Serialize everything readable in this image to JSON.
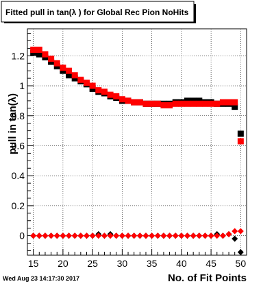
{
  "chart_data": {
    "type": "scatter",
    "title": "Fitted pull in tan(λ ) for Global Rec Pion NoHits",
    "xlabel": "No. of Fit Points",
    "ylabel": "pull in tan(λ)",
    "timestamp": "Wed Aug 23 14:17:30 2017",
    "xlim": [
      14,
      51
    ],
    "ylim": [
      -0.13,
      1.38
    ],
    "xticks": [
      15,
      20,
      25,
      30,
      35,
      40,
      45,
      50
    ],
    "yticks": [
      0,
      0.2,
      0.4,
      0.6,
      0.8,
      1,
      1.2
    ],
    "ytick_labels": [
      "0",
      "0.2",
      "0.4",
      "0.6",
      "0.8",
      "1",
      "1.2"
    ],
    "grid": true,
    "series": [
      {
        "marker": "square",
        "color": "#000000",
        "x": [
          15,
          16,
          17,
          18,
          19,
          20,
          21,
          22,
          23,
          24,
          25,
          26,
          27,
          28,
          29,
          30,
          31,
          32,
          33,
          34,
          35,
          36,
          37,
          38,
          39,
          40,
          41,
          42,
          43,
          44,
          45,
          46,
          47,
          48,
          49,
          50
        ],
        "y": [
          1.22,
          1.21,
          1.19,
          1.16,
          1.13,
          1.1,
          1.07,
          1.05,
          1.03,
          1.01,
          0.98,
          0.96,
          0.95,
          0.93,
          0.92,
          0.9,
          0.9,
          0.89,
          0.89,
          0.88,
          0.88,
          0.88,
          0.88,
          0.88,
          0.89,
          0.89,
          0.9,
          0.9,
          0.9,
          0.89,
          0.89,
          0.88,
          0.88,
          0.88,
          0.86,
          0.68
        ]
      },
      {
        "marker": "square",
        "color": "#ff0000",
        "x": [
          15,
          16,
          17,
          18,
          19,
          20,
          21,
          22,
          23,
          24,
          25,
          26,
          27,
          28,
          29,
          30,
          31,
          32,
          33,
          34,
          35,
          36,
          37,
          38,
          39,
          40,
          41,
          42,
          43,
          44,
          45,
          46,
          47,
          48,
          49,
          50
        ],
        "y": [
          1.24,
          1.24,
          1.21,
          1.18,
          1.15,
          1.12,
          1.1,
          1.07,
          1.04,
          1.02,
          1.0,
          0.97,
          0.96,
          0.94,
          0.93,
          0.91,
          0.9,
          0.89,
          0.89,
          0.88,
          0.88,
          0.88,
          0.87,
          0.87,
          0.88,
          0.88,
          0.88,
          0.88,
          0.88,
          0.88,
          0.88,
          0.88,
          0.89,
          0.89,
          0.89,
          0.63
        ]
      },
      {
        "marker": "diamond",
        "color": "#000000",
        "x": [
          15,
          16,
          17,
          18,
          19,
          20,
          21,
          22,
          23,
          24,
          25,
          26,
          27,
          28,
          29,
          30,
          31,
          32,
          33,
          34,
          35,
          36,
          37,
          38,
          39,
          40,
          41,
          42,
          43,
          44,
          45,
          46,
          47,
          48,
          49,
          50
        ],
        "y": [
          0.0,
          0.0,
          0.0,
          0.0,
          0.0,
          0.0,
          0.0,
          0.0,
          0.0,
          0.0,
          0.0,
          0.01,
          0.0,
          0.01,
          0.0,
          0.0,
          0.0,
          0.0,
          0.0,
          0.0,
          0.0,
          0.0,
          0.0,
          0.0,
          0.0,
          0.0,
          0.0,
          0.0,
          0.0,
          0.0,
          0.0,
          0.01,
          0.0,
          0.01,
          -0.02,
          -0.11
        ]
      },
      {
        "marker": "diamond",
        "color": "#ff0000",
        "x": [
          15,
          16,
          17,
          18,
          19,
          20,
          21,
          22,
          23,
          24,
          25,
          26,
          27,
          28,
          29,
          30,
          31,
          32,
          33,
          34,
          35,
          36,
          37,
          38,
          39,
          40,
          41,
          42,
          43,
          44,
          45,
          46,
          47,
          48,
          49,
          50
        ],
        "y": [
          0.0,
          0.0,
          0.0,
          0.0,
          0.0,
          0.0,
          0.0,
          0.0,
          0.0,
          0.0,
          0.0,
          0.0,
          0.0,
          0.0,
          0.0,
          0.0,
          0.0,
          0.0,
          0.0,
          0.0,
          0.0,
          0.0,
          0.0,
          0.0,
          0.0,
          0.0,
          0.0,
          0.0,
          0.0,
          0.0,
          0.0,
          0.0,
          0.0,
          0.01,
          0.03,
          0.03
        ]
      }
    ]
  }
}
